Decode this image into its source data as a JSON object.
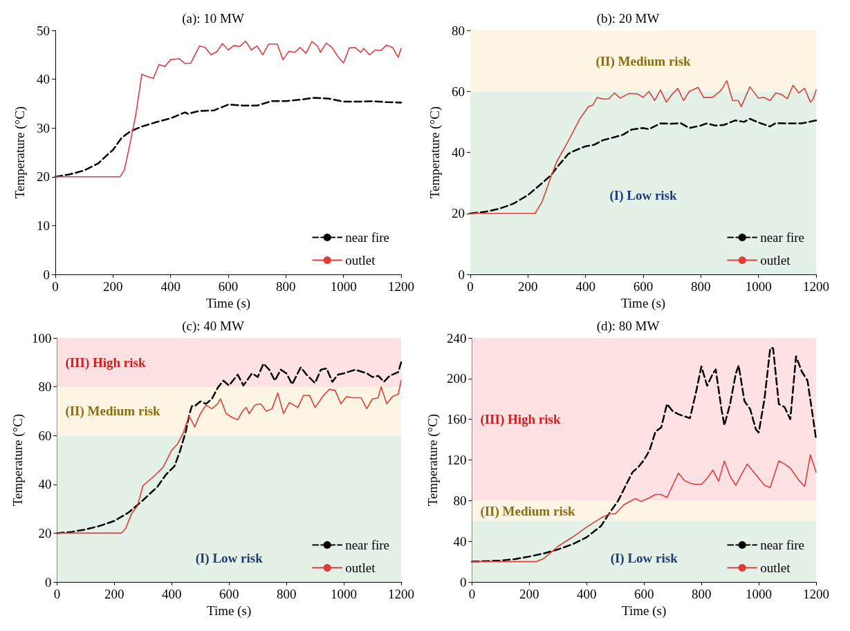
{
  "chart_data": [
    {
      "type": "line",
      "title": "(a): 10 MW",
      "xlabel": "Time (s)",
      "ylabel": "Temperature (°C)",
      "xlim": [
        0,
        1200
      ],
      "ylim": [
        0,
        50
      ],
      "xticks": [
        0,
        200,
        400,
        600,
        800,
        1000,
        1200
      ],
      "yticks": [
        0,
        10,
        20,
        30,
        40,
        50
      ],
      "grid": false,
      "legend": "bottom right",
      "series": [
        {
          "name": "near fire",
          "color": "#000000",
          "line_style": "dashed",
          "x": [
            0,
            50,
            100,
            150,
            180,
            200,
            230,
            260,
            300,
            350,
            400,
            450,
            460,
            500,
            550,
            600,
            650,
            700,
            750,
            800,
            850,
            900,
            950,
            1000,
            1050,
            1100,
            1150,
            1200
          ],
          "values": [
            20,
            20.5,
            21.3,
            22.8,
            24.5,
            25.5,
            28,
            29.3,
            30.3,
            31.2,
            32,
            33.2,
            32.9,
            33.5,
            33.6,
            34.8,
            34.6,
            34.6,
            35.5,
            35.5,
            35.8,
            36.2,
            36,
            35.4,
            35.4,
            35.5,
            35.3,
            35.2
          ]
        },
        {
          "name": "outlet",
          "color": "#e03c3c",
          "line_style": "solid",
          "x": [
            0,
            225,
            240,
            260,
            280,
            300,
            320,
            340,
            360,
            380,
            400,
            430,
            450,
            470,
            500,
            520,
            540,
            560,
            580,
            600,
            620,
            640,
            660,
            680,
            700,
            720,
            740,
            770,
            790,
            810,
            830,
            850,
            870,
            890,
            910,
            920,
            940,
            960,
            980,
            1000,
            1020,
            1040,
            1060,
            1070,
            1090,
            1110,
            1130,
            1150,
            1170,
            1190,
            1200
          ],
          "values": [
            20,
            20,
            21.5,
            27,
            33,
            41,
            40.5,
            40.2,
            43,
            42.6,
            44,
            44.2,
            43.2,
            43.3,
            46.8,
            46.5,
            45,
            45.6,
            47.3,
            46,
            46.9,
            46.7,
            47.8,
            46,
            46.8,
            45,
            47.2,
            47.2,
            44,
            45.7,
            45.5,
            46.5,
            45.3,
            47.7,
            46.8,
            45.5,
            47.4,
            46.5,
            44.7,
            43.3,
            46.4,
            46.5,
            45.5,
            46.3,
            45,
            46,
            45.9,
            47,
            46.5,
            44.5,
            46.3
          ]
        }
      ]
    },
    {
      "type": "line",
      "title": "(b): 20 MW",
      "xlabel": "Time (s)",
      "ylabel": "Temperature (°C)",
      "xlim": [
        0,
        1200
      ],
      "ylim": [
        0,
        80
      ],
      "xticks": [
        0,
        200,
        400,
        600,
        800,
        1000,
        1200
      ],
      "yticks": [
        0,
        20,
        40,
        60,
        80
      ],
      "grid": false,
      "legend": "bottom right",
      "bands": [
        {
          "axis": "y",
          "from": 0,
          "to": 60,
          "label": "(I) Low risk",
          "color": "#e3f1e6"
        },
        {
          "axis": "y",
          "from": 60,
          "to": 80,
          "label": "(II) Medium risk",
          "color": "#fcf5e3"
        }
      ],
      "series": [
        {
          "name": "near fire",
          "color": "#000000",
          "line_style": "dashed",
          "x": [
            0,
            50,
            100,
            150,
            200,
            250,
            280,
            300,
            340,
            360,
            400,
            430,
            460,
            500,
            530,
            560,
            600,
            620,
            660,
            700,
            730,
            760,
            800,
            820,
            850,
            880,
            920,
            950,
            970,
            1000,
            1040,
            1060,
            1100,
            1150,
            1200
          ],
          "values": [
            20,
            20.5,
            21.5,
            23.2,
            26,
            30,
            32.5,
            35,
            39.5,
            40.5,
            42,
            42.5,
            44,
            45,
            45.8,
            47.5,
            48,
            47.6,
            49.5,
            49.4,
            49.6,
            48,
            48.8,
            49.5,
            48.8,
            49,
            50.5,
            50,
            51,
            49.8,
            48.5,
            49.6,
            49.5,
            49.5,
            50.5
          ]
        },
        {
          "name": "outlet",
          "color": "#e03c3c",
          "line_style": "solid",
          "x": [
            0,
            225,
            250,
            280,
            300,
            330,
            350,
            380,
            410,
            425,
            440,
            460,
            480,
            500,
            520,
            550,
            580,
            600,
            620,
            640,
            660,
            680,
            700,
            720,
            740,
            760,
            790,
            810,
            840,
            870,
            890,
            910,
            930,
            940,
            970,
            1000,
            1020,
            1040,
            1060,
            1080,
            1100,
            1120,
            1140,
            1160,
            1180,
            1190,
            1200
          ],
          "values": [
            20,
            20,
            24,
            32,
            37,
            42,
            45.5,
            51,
            55,
            55.5,
            58,
            57.5,
            57.5,
            59.5,
            57.8,
            59.3,
            59.2,
            58,
            60,
            57,
            60.5,
            56.5,
            59,
            61,
            57,
            60,
            61.3,
            58,
            58,
            60.3,
            63.5,
            57,
            57,
            55,
            61.5,
            57.8,
            58,
            57,
            59.5,
            59,
            57.6,
            62,
            59.5,
            61,
            56.5,
            57.5,
            60.5
          ]
        }
      ]
    },
    {
      "type": "line",
      "title": "(c): 40 MW",
      "xlabel": "Time (s)",
      "ylabel": "Temperature (°C)",
      "xlim": [
        0,
        1200
      ],
      "ylim": [
        0,
        100
      ],
      "xticks": [
        0,
        200,
        400,
        600,
        800,
        1000,
        1200
      ],
      "yticks": [
        0,
        20,
        40,
        60,
        80,
        100
      ],
      "grid": false,
      "legend": "bottom right",
      "bands": [
        {
          "axis": "y",
          "from": 0,
          "to": 60,
          "label": "(I) Low risk",
          "color": "#e3f1e6"
        },
        {
          "axis": "y",
          "from": 60,
          "to": 80,
          "label": "(II) Medium risk",
          "color": "#fcf5e3"
        },
        {
          "axis": "y",
          "from": 80,
          "to": 100,
          "label": "(III) High risk",
          "color": "#fde1e3"
        }
      ],
      "series": [
        {
          "name": "near fire",
          "color": "#000000",
          "line_style": "dashed",
          "x": [
            0,
            50,
            100,
            150,
            200,
            250,
            300,
            350,
            380,
            410,
            430,
            450,
            460,
            470,
            480,
            500,
            520,
            540,
            560,
            580,
            600,
            630,
            650,
            680,
            700,
            720,
            740,
            760,
            780,
            800,
            820,
            850,
            870,
            900,
            920,
            940,
            960,
            980,
            1000,
            1040,
            1080,
            1100,
            1120,
            1140,
            1160,
            1190,
            1200
          ],
          "values": [
            20,
            20.5,
            21.5,
            23,
            25,
            28.5,
            33.5,
            39,
            44,
            47.5,
            54,
            62,
            68,
            72,
            72,
            74,
            73,
            75,
            79.5,
            82.5,
            80.5,
            85,
            80.5,
            85.5,
            84,
            89.5,
            87,
            82.5,
            87,
            85.5,
            81,
            88,
            85,
            81.5,
            87,
            87.5,
            82,
            85,
            85.5,
            87,
            85.5,
            84,
            84.5,
            82,
            84.5,
            86,
            90
          ]
        },
        {
          "name": "outlet",
          "color": "#e03c3c",
          "line_style": "solid",
          "x": [
            0,
            225,
            240,
            260,
            280,
            300,
            320,
            340,
            370,
            400,
            420,
            440,
            460,
            470,
            480,
            500,
            520,
            540,
            560,
            570,
            590,
            610,
            630,
            650,
            660,
            670,
            690,
            710,
            730,
            750,
            770,
            790,
            810,
            840,
            860,
            880,
            900,
            930,
            950,
            970,
            990,
            1010,
            1030,
            1060,
            1080,
            1100,
            1120,
            1130,
            1150,
            1170,
            1190,
            1200
          ],
          "values": [
            20,
            20,
            22,
            28,
            31,
            39.5,
            41.5,
            43.5,
            47,
            54,
            56.5,
            61,
            68,
            66,
            63.5,
            69,
            72.5,
            71,
            73,
            75,
            69,
            67.5,
            66.5,
            70.5,
            71.5,
            69,
            72.5,
            73,
            70,
            71,
            77.5,
            69,
            73.5,
            71.5,
            76.5,
            76.5,
            71.5,
            76.5,
            79,
            78.5,
            73,
            76,
            75.5,
            75.5,
            71,
            75,
            75.5,
            80,
            73,
            76,
            77,
            82.5
          ]
        }
      ]
    },
    {
      "type": "line",
      "title": "(d): 80 MW",
      "xlabel": "Time (s)",
      "ylabel": "Temperature (°C)",
      "xlim": [
        0,
        1200
      ],
      "ylim": [
        0,
        240
      ],
      "xticks": [
        0,
        200,
        400,
        600,
        800,
        1000,
        1200
      ],
      "yticks": [
        0,
        40,
        80,
        120,
        160,
        200,
        240
      ],
      "grid": false,
      "legend": "bottom right",
      "bands": [
        {
          "axis": "y",
          "from": 0,
          "to": 60,
          "label": "(I) Low risk",
          "color": "#e3f1e6"
        },
        {
          "axis": "y",
          "from": 60,
          "to": 80,
          "label": "(II) Medium risk",
          "color": "#fcf5e3"
        },
        {
          "axis": "y",
          "from": 80,
          "to": 240,
          "label": "(III) High risk",
          "color": "#fde1e3"
        }
      ],
      "series": [
        {
          "name": "near fire",
          "color": "#000000",
          "line_style": "dashed",
          "x": [
            0,
            100,
            150,
            200,
            250,
            300,
            350,
            400,
            450,
            480,
            510,
            540,
            560,
            580,
            600,
            620,
            640,
            660,
            680,
            700,
            720,
            740,
            760,
            780,
            800,
            820,
            840,
            850,
            870,
            880,
            900,
            920,
            930,
            950,
            970,
            990,
            1000,
            1020,
            1040,
            1050,
            1070,
            1090,
            1110,
            1130,
            1150,
            1170,
            1190,
            1200
          ],
          "values": [
            20,
            21,
            22.5,
            25,
            28,
            32,
            37,
            44,
            55,
            68,
            80,
            97,
            108,
            113,
            120,
            130,
            148,
            152,
            175,
            168,
            165,
            163,
            161,
            185,
            212,
            193,
            205,
            209,
            170,
            154,
            175,
            205,
            213,
            178,
            170,
            150,
            147,
            180,
            230,
            230,
            175,
            172,
            160,
            222,
            207,
            198,
            160,
            140
          ]
        },
        {
          "name": "outlet",
          "color": "#e03c3c",
          "line_style": "solid",
          "x": [
            0,
            225,
            250,
            280,
            300,
            350,
            400,
            450,
            480,
            500,
            530,
            550,
            570,
            590,
            620,
            640,
            660,
            680,
            700,
            720,
            740,
            760,
            780,
            800,
            820,
            840,
            860,
            880,
            900,
            920,
            940,
            960,
            980,
            1000,
            1020,
            1040,
            1070,
            1090,
            1110,
            1140,
            1160,
            1180,
            1200
          ],
          "values": [
            20,
            20,
            23,
            30,
            35,
            44,
            54,
            63,
            67,
            67,
            76,
            79,
            82,
            79,
            83,
            86,
            86,
            83,
            95,
            107,
            100,
            97,
            96,
            96,
            102,
            110,
            99,
            119,
            104,
            95,
            106,
            116,
            109,
            102,
            95,
            93,
            119,
            116,
            112,
            100,
            94,
            125,
            108
          ]
        }
      ]
    }
  ]
}
